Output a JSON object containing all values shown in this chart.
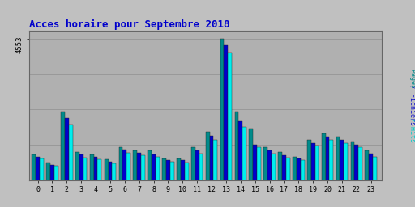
{
  "title": "Acces horaire pour Septembre 2018",
  "title_color": "#0000CC",
  "title_fontsize": 9,
  "background_color": "#C0C0C0",
  "plot_background": "#B0B0B0",
  "ylim": [
    0,
    4800
  ],
  "hours": [
    0,
    1,
    2,
    3,
    4,
    5,
    6,
    7,
    8,
    9,
    10,
    11,
    12,
    13,
    14,
    15,
    16,
    17,
    18,
    19,
    20,
    21,
    22,
    23
  ],
  "pages": [
    820,
    560,
    2200,
    900,
    820,
    680,
    1050,
    950,
    950,
    700,
    700,
    1050,
    1550,
    4553,
    2200,
    1650,
    1050,
    900,
    750,
    1300,
    1500,
    1400,
    1250,
    950
  ],
  "fichiers": [
    760,
    500,
    2000,
    820,
    740,
    600,
    970,
    870,
    830,
    640,
    640,
    950,
    1420,
    4350,
    1900,
    1150,
    950,
    800,
    700,
    1200,
    1400,
    1300,
    1150,
    850
  ],
  "hits": [
    700,
    450,
    1800,
    730,
    680,
    530,
    870,
    800,
    750,
    580,
    570,
    850,
    1300,
    4100,
    1700,
    1050,
    850,
    720,
    640,
    1100,
    1300,
    1200,
    1050,
    750
  ],
  "bar_width": 0.27,
  "pages_color": "#008B8B",
  "fichiers_color": "#0000CD",
  "hits_color": "#00EEEE",
  "grid_color": "#999999",
  "font_family": "monospace",
  "ylabel_pages_color": "#008B8B",
  "ylabel_fichiers_color": "#1010CC",
  "ylabel_hits_color": "#00CCCC"
}
